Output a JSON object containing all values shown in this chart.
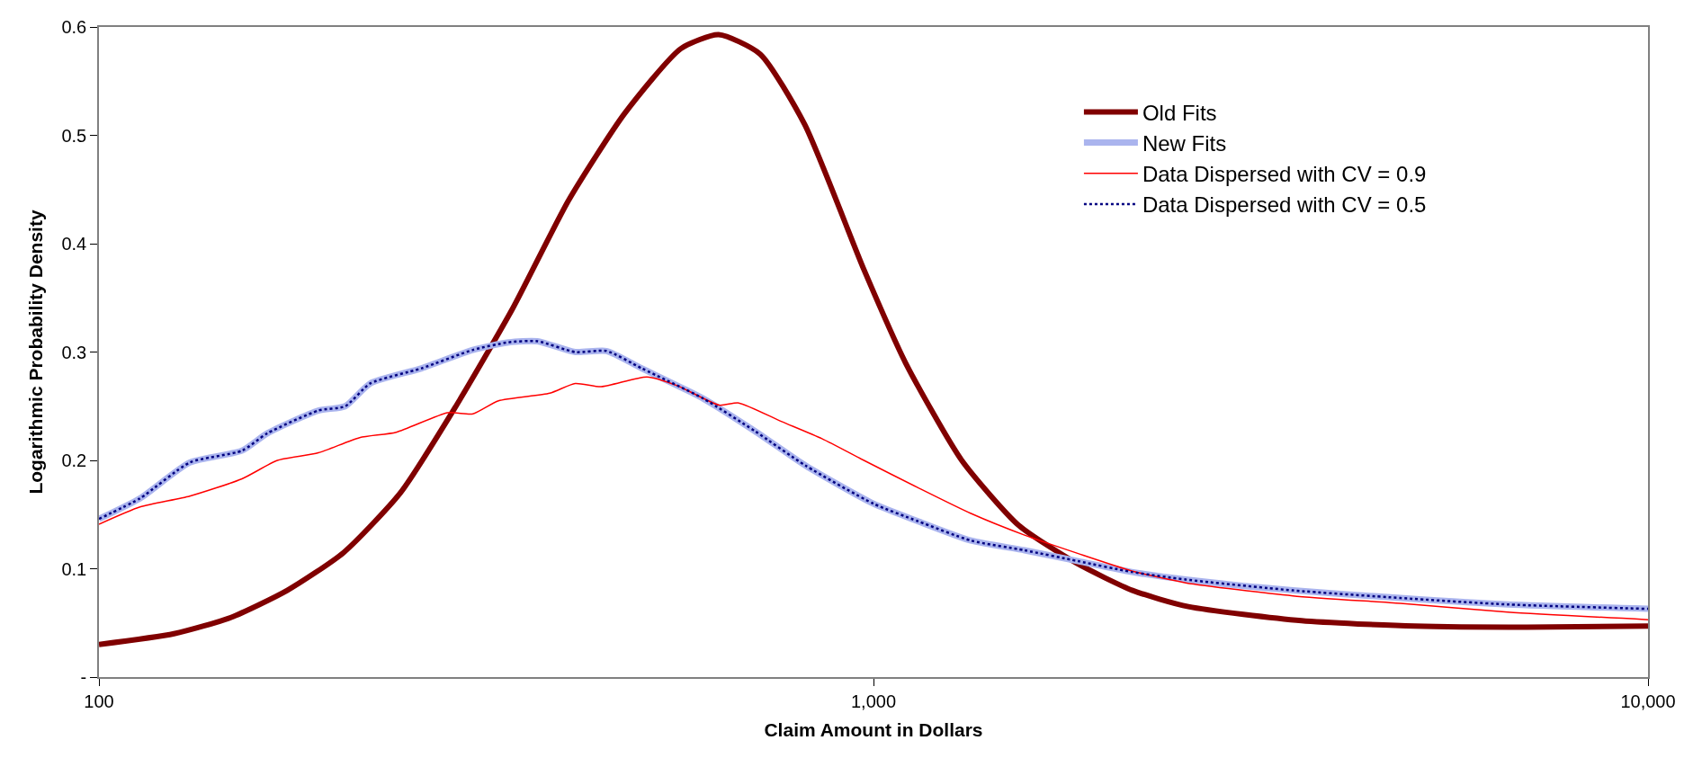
{
  "chart_data": {
    "type": "line",
    "xlabel": "Claim Amount in Dollars",
    "ylabel": "Logarithmic Probability Density",
    "log": "x",
    "legend": "top right",
    "marker": "none",
    "xlim": [
      100,
      10000
    ],
    "xticks": [
      100,
      {
        "value": 1000,
        "label": "1,000"
      },
      {
        "value": 10000,
        "label": "10,000"
      }
    ],
    "ylim": [
      0,
      0.6
    ],
    "yticks": [
      {
        "value": 0,
        "label": "-"
      },
      0.1,
      0.2,
      0.3,
      0.4,
      0.5,
      0.6
    ],
    "series": [
      {
        "name": "Old Fits",
        "color": "#800000",
        "line_style": "solid",
        "x": [
          100,
          125,
          148,
          175,
          207,
          245,
          289,
          342,
          404,
          477,
          564,
          631,
          714,
          815,
          972,
          1100,
          1300,
          1540,
          1830,
          2160,
          2550,
          3570,
          5000,
          6980,
          10000
        ],
        "values": [
          0.03,
          0.04,
          0.055,
          0.08,
          0.115,
          0.17,
          0.25,
          0.34,
          0.44,
          0.52,
          0.58,
          0.593,
          0.575,
          0.51,
          0.376,
          0.29,
          0.2,
          0.14,
          0.105,
          0.08,
          0.065,
          0.052,
          0.047,
          0.046,
          0.047
        ]
      },
      {
        "name": "New Fits",
        "color": "#aab4ee",
        "line_style": "solid",
        "x": [
          100,
          113,
          131,
          153,
          165,
          192,
          208,
          224,
          261,
          304,
          338,
          368,
          412,
          452,
          502,
          603,
          703,
          818,
          1000,
          1140,
          1336,
          1567,
          1838,
          2155,
          2530,
          3480,
          4790,
          6590,
          10000
        ],
        "values": [
          0.146,
          0.165,
          0.198,
          0.209,
          0.225,
          0.246,
          0.25,
          0.271,
          0.285,
          0.302,
          0.309,
          0.31,
          0.3,
          0.301,
          0.285,
          0.257,
          0.227,
          0.195,
          0.16,
          0.144,
          0.126,
          0.117,
          0.107,
          0.097,
          0.09,
          0.08,
          0.073,
          0.067,
          0.063
        ]
      },
      {
        "name": "Data Dispersed with CV = 0.9",
        "color": "#ff0000",
        "line_style": "solid",
        "x": [
          100,
          113,
          131,
          153,
          170,
          192,
          217,
          242,
          282,
          304,
          328,
          382,
          412,
          445,
          510,
          558,
          632,
          670,
          760,
          858,
          972,
          1140,
          1336,
          1567,
          1838,
          2155,
          2530,
          3480,
          4790,
          6590,
          10000
        ],
        "values": [
          0.141,
          0.157,
          0.167,
          0.183,
          0.2,
          0.207,
          0.221,
          0.226,
          0.244,
          0.243,
          0.255,
          0.262,
          0.271,
          0.268,
          0.277,
          0.269,
          0.251,
          0.253,
          0.236,
          0.22,
          0.2,
          0.175,
          0.151,
          0.131,
          0.114,
          0.098,
          0.087,
          0.075,
          0.068,
          0.06,
          0.053
        ]
      },
      {
        "name": "Data Dispersed with CV = 0.5",
        "color": "#000080",
        "line_style": "dotted",
        "x": [
          100,
          113,
          131,
          153,
          165,
          192,
          208,
          224,
          261,
          304,
          338,
          368,
          412,
          452,
          502,
          603,
          703,
          818,
          1000,
          1140,
          1336,
          1567,
          1838,
          2155,
          2530,
          3480,
          4790,
          6590,
          10000
        ],
        "values": [
          0.146,
          0.165,
          0.198,
          0.209,
          0.225,
          0.246,
          0.25,
          0.271,
          0.285,
          0.302,
          0.309,
          0.31,
          0.3,
          0.301,
          0.285,
          0.257,
          0.227,
          0.195,
          0.16,
          0.144,
          0.126,
          0.117,
          0.107,
          0.097,
          0.09,
          0.08,
          0.073,
          0.067,
          0.063
        ]
      }
    ]
  }
}
